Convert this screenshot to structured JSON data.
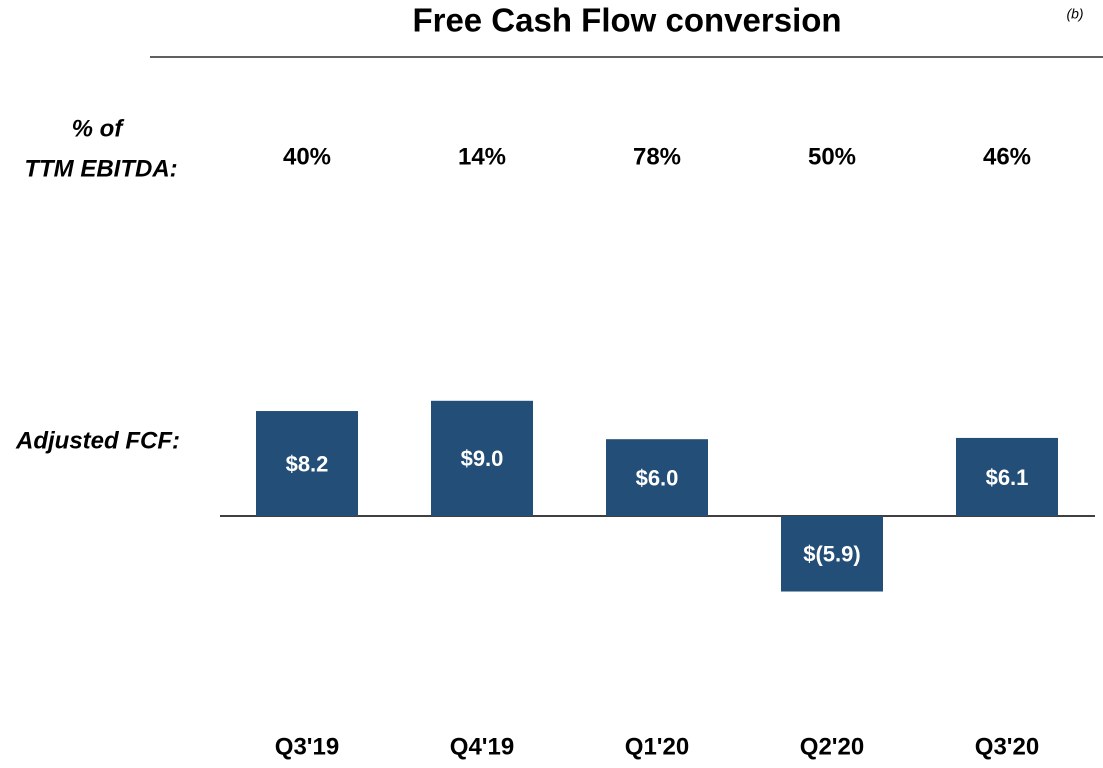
{
  "chart_data": {
    "type": "bar",
    "title": "Free Cash Flow conversion",
    "note": "(b)",
    "pct_row_label": [
      "% of",
      "TTM EBITDA:"
    ],
    "pct_values": [
      "40%",
      "14%",
      "78%",
      "50%",
      "46%"
    ],
    "value_row_label": "Adjusted FCF:",
    "categories": [
      "Q3'19",
      "Q4'19",
      "Q1'20",
      "Q2'20",
      "Q3'20"
    ],
    "values": [
      8.2,
      9.0,
      6.0,
      -5.9,
      6.1
    ],
    "value_labels": [
      "$8.2",
      "$9.0",
      "$6.0",
      "$(5.9)",
      "$6.1"
    ],
    "color": "#234e77"
  }
}
